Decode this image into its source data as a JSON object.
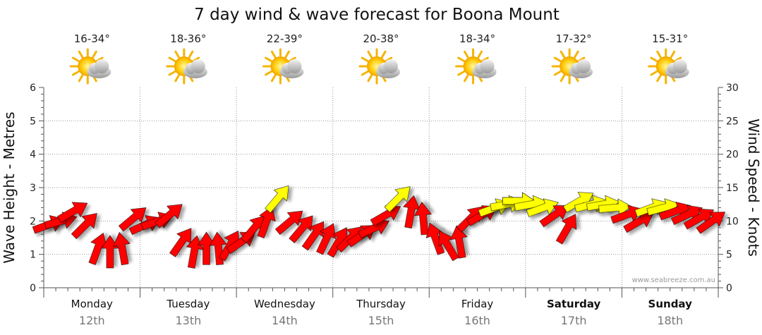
{
  "chart_data": {
    "type": "line",
    "title": "7 day wind & wave forecast for Boona Mount",
    "ylabel_left": "Wave Height - Metres",
    "ylabel_right": "Wind Speed - Knots",
    "ylim_left": [
      0,
      6
    ],
    "ylim_right": [
      0,
      30
    ],
    "left_ticks": [
      "0",
      "1",
      "2",
      "3",
      "4",
      "5",
      "6"
    ],
    "right_ticks": [
      "0",
      "5",
      "10",
      "15",
      "20",
      "25",
      "30"
    ],
    "grid": true,
    "credit": "www.seabreeze.com.au",
    "days": [
      {
        "name": "Monday",
        "date": "12th",
        "temp": "16-34°",
        "bold": false
      },
      {
        "name": "Tuesday",
        "date": "13th",
        "temp": "18-36°",
        "bold": false
      },
      {
        "name": "Wednesday",
        "date": "14th",
        "temp": "22-39°",
        "bold": false
      },
      {
        "name": "Thursday",
        "date": "15th",
        "temp": "20-38°",
        "bold": false
      },
      {
        "name": "Friday",
        "date": "16th",
        "temp": "18-34°",
        "bold": false
      },
      {
        "name": "Saturday",
        "date": "17th",
        "temp": "17-32°",
        "bold": true
      },
      {
        "name": "Sunday",
        "date": "18th",
        "temp": "15-31°",
        "bold": true
      }
    ],
    "weather_icon": "partly-cloudy-sun-icon",
    "colors": {
      "strong_wind": "#ff0000",
      "moderate_wind": "#ffff00",
      "arrow_stroke": "#000000",
      "grid": "#999999"
    },
    "wind_series": {
      "name": "Wind Speed",
      "x_day": [
        0.0,
        0.125,
        0.25,
        0.375,
        0.5,
        0.625,
        0.75,
        0.875,
        1.0,
        1.125,
        1.25,
        1.375,
        1.5,
        1.625,
        1.75,
        1.875,
        2.0,
        2.125,
        2.25,
        2.375,
        2.5,
        2.625,
        2.75,
        2.875,
        3.0,
        3.125,
        3.25,
        3.375,
        3.5,
        3.625,
        3.75,
        3.875,
        4.0,
        4.125,
        4.25,
        4.375,
        4.5,
        4.625,
        4.75,
        4.875,
        5.0,
        5.125,
        5.25,
        5.375,
        5.5,
        5.625,
        5.75,
        5.875,
        6.0,
        6.125,
        6.25,
        6.375,
        6.5,
        6.625,
        6.75,
        6.875
      ],
      "speed_knots": [
        9.5,
        10,
        11.5,
        9.5,
        6,
        5.5,
        6,
        10.5,
        9.5,
        10,
        11,
        7,
        5.5,
        6,
        6,
        6.5,
        7,
        9,
        10,
        13.5,
        10,
        9,
        8,
        7.5,
        7,
        7.5,
        8,
        9,
        11,
        13.5,
        11.5,
        10.5,
        7.5,
        6.5,
        7,
        10.5,
        11,
        12,
        12.5,
        13,
        12.5,
        12,
        11,
        9,
        13,
        12.5,
        12.5,
        12,
        11,
        10,
        12,
        12,
        11.5,
        11,
        10.5,
        10
      ],
      "direction_deg": [
        250,
        255,
        240,
        225,
        200,
        180,
        170,
        230,
        245,
        250,
        230,
        215,
        190,
        180,
        175,
        210,
        235,
        220,
        200,
        220,
        230,
        220,
        215,
        205,
        210,
        225,
        235,
        245,
        240,
        225,
        190,
        175,
        160,
        150,
        170,
        225,
        240,
        250,
        260,
        270,
        260,
        250,
        235,
        210,
        240,
        255,
        260,
        265,
        250,
        240,
        250,
        255,
        250,
        245,
        240,
        235
      ]
    }
  }
}
